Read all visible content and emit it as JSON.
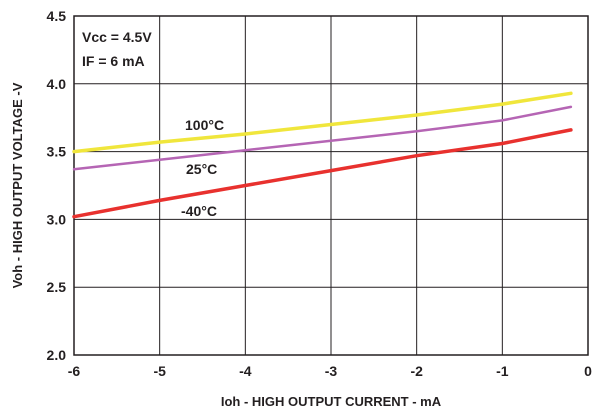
{
  "chart_data": {
    "type": "line",
    "xlabel": "Ioh - HIGH OUTPUT CURRENT - mA",
    "ylabel": "Voh - HIGH OUTPUT VOLTAGE -V",
    "xlim": [
      -6,
      0
    ],
    "ylim": [
      2.0,
      4.5
    ],
    "x_ticks": [
      "-6",
      "-5",
      "-4",
      "-3",
      "-2",
      "-1",
      "0"
    ],
    "y_ticks": [
      "2.0",
      "2.5",
      "3.0",
      "3.5",
      "4.0",
      "4.5"
    ],
    "grid": true,
    "annotations": [
      "Vcc = 4.5V",
      "IF = 6 mA"
    ],
    "series": [
      {
        "name": "100°C",
        "color": "#f0e63c",
        "x": [
          -6,
          -5,
          -4,
          -3,
          -2,
          -1,
          -0.2
        ],
        "y": [
          3.5,
          3.57,
          3.63,
          3.7,
          3.77,
          3.85,
          3.93
        ]
      },
      {
        "name": "25°C",
        "color": "#b565b4",
        "x": [
          -6,
          -5,
          -4,
          -3,
          -2,
          -1,
          -0.2
        ],
        "y": [
          3.37,
          3.44,
          3.51,
          3.58,
          3.65,
          3.73,
          3.83
        ]
      },
      {
        "name": "-40°C",
        "color": "#e8312e",
        "x": [
          -6,
          -5,
          -4,
          -3,
          -2,
          -1,
          -0.2
        ],
        "y": [
          3.02,
          3.14,
          3.25,
          3.36,
          3.47,
          3.56,
          3.66
        ]
      }
    ]
  }
}
